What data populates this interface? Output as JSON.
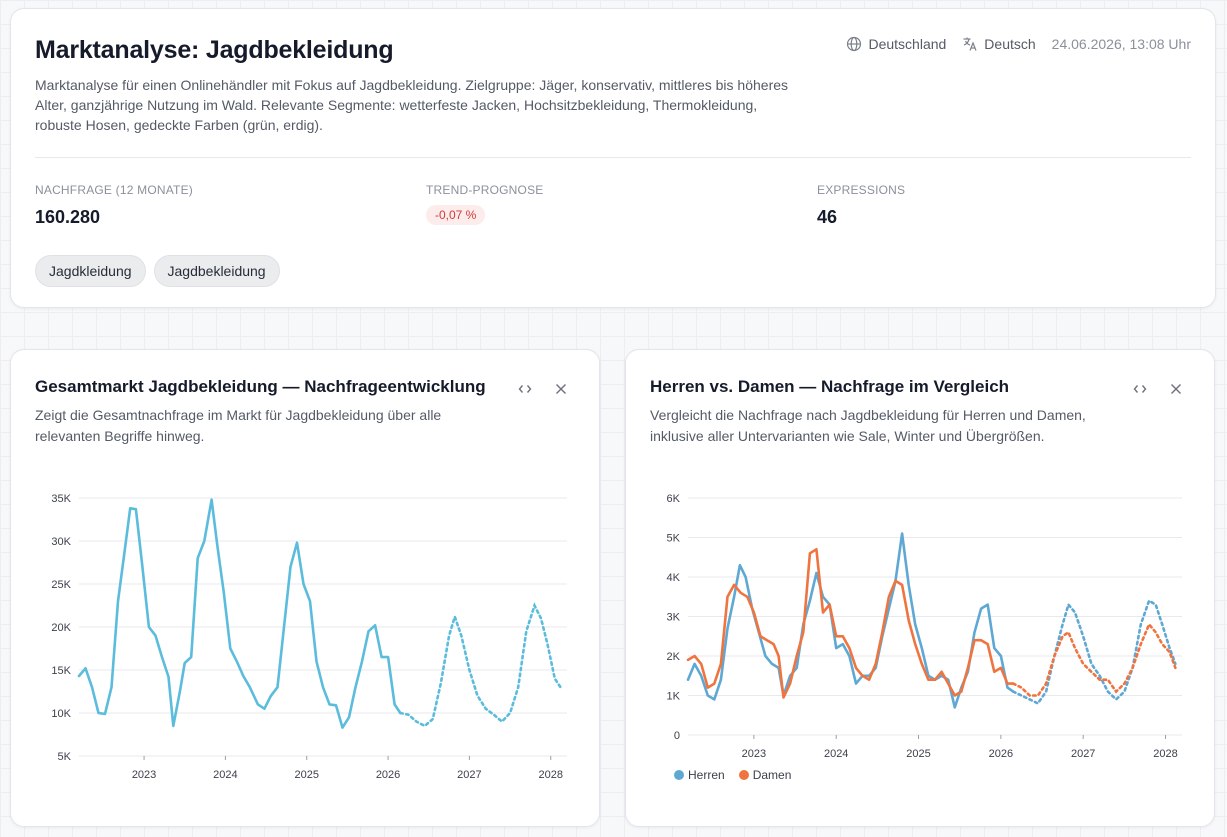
{
  "header": {
    "title": "Marktanalyse: Jagdbekleidung",
    "description": "Marktanalyse für einen Onlinehändler mit Fokus auf Jagdbekleidung. Zielgruppe: Jäger, konservativ, mittleres bis höheres Alter, ganzjährige Nutzung im Wald. Relevante Segmente: wetterfeste Jacken, Hochsitzbekleidung, Thermokleidung, robuste Hosen, gedeckte Farben (grün, erdig).",
    "country": "Deutschland",
    "language": "Deutsch",
    "date": "24.06.2026, 13:08 Uhr",
    "globe_icon": "globe-icon",
    "translate_icon": "translate-icon"
  },
  "stats": {
    "demand_label": "NACHFRAGE (12 MONATE)",
    "demand_value": "160.280",
    "trend_label": "TREND-PROGNOSE",
    "trend_value": "-0,07 %",
    "expressions_label": "EXPRESSIONS",
    "expressions_value": "46"
  },
  "tags": [
    "Jagdkleidung",
    "Jagdbekleidung"
  ],
  "colors": {
    "total": "#5bbcdc",
    "herren": "#5fa8d3",
    "damen": "#ef7440",
    "trend_negative": "#d23a3a"
  },
  "cards": [
    {
      "title": "Gesamtmarkt Jagdbekleidung — Nachfrageentwicklung",
      "description": "Zeigt die Gesamtnachfrage im Markt für Jagdbekleidung über alle relevanten Begriffe hinweg."
    },
    {
      "title": "Herren vs. Damen — Nachfrage im Vergleich",
      "description": "Vergleicht die Nachfrage nach Jagdbekleidung für Herren und Damen, inklusive aller Untervarianten wie Sale, Winter und Übergrößen."
    }
  ],
  "chart_data": [
    {
      "type": "line",
      "title": "Gesamtmarkt Jagdbekleidung — Nachfrageentwicklung",
      "ylim": [
        5000,
        35000
      ],
      "yticks": [
        5000,
        10000,
        15000,
        20000,
        25000,
        30000,
        35000
      ],
      "ytick_labels": [
        "5K",
        "10K",
        "15K",
        "20K",
        "25K",
        "30K",
        "35K"
      ],
      "xlim": [
        2022.2,
        2028.2
      ],
      "xticks": [
        2023,
        2024,
        2025,
        2026,
        2027,
        2028
      ],
      "xtick_labels": [
        "2023",
        "2024",
        "2025",
        "2026",
        "2027",
        "2028"
      ],
      "grid": true,
      "forecast_from": 2026.15,
      "series": [
        {
          "color": "#5bbcdc",
          "points": [
            [
              2022.2,
              14300
            ],
            [
              2022.28,
              15200
            ],
            [
              2022.36,
              13000
            ],
            [
              2022.44,
              10000
            ],
            [
              2022.52,
              9900
            ],
            [
              2022.6,
              13000
            ],
            [
              2022.68,
              23000
            ],
            [
              2022.75,
              28000
            ],
            [
              2022.83,
              33800
            ],
            [
              2022.9,
              33700
            ],
            [
              2022.98,
              27000
            ],
            [
              2023.06,
              20000
            ],
            [
              2023.14,
              19000
            ],
            [
              2023.22,
              16500
            ],
            [
              2023.3,
              14200
            ],
            [
              2023.36,
              8500
            ],
            [
              2023.44,
              12500
            ],
            [
              2023.5,
              15800
            ],
            [
              2023.58,
              16500
            ],
            [
              2023.66,
              28000
            ],
            [
              2023.74,
              30000
            ],
            [
              2023.83,
              34800
            ],
            [
              2023.9,
              29500
            ],
            [
              2023.98,
              24000
            ],
            [
              2024.06,
              17500
            ],
            [
              2024.14,
              16000
            ],
            [
              2024.22,
              14300
            ],
            [
              2024.3,
              13000
            ],
            [
              2024.4,
              11000
            ],
            [
              2024.48,
              10500
            ],
            [
              2024.56,
              12000
            ],
            [
              2024.64,
              13000
            ],
            [
              2024.72,
              20000
            ],
            [
              2024.8,
              27000
            ],
            [
              2024.88,
              29800
            ],
            [
              2024.96,
              25000
            ],
            [
              2025.04,
              23000
            ],
            [
              2025.12,
              16000
            ],
            [
              2025.2,
              13000
            ],
            [
              2025.28,
              11000
            ],
            [
              2025.36,
              10900
            ],
            [
              2025.44,
              8300
            ],
            [
              2025.52,
              9500
            ],
            [
              2025.6,
              13000
            ],
            [
              2025.68,
              16000
            ],
            [
              2025.76,
              19500
            ],
            [
              2025.84,
              20200
            ],
            [
              2025.92,
              16500
            ],
            [
              2026.0,
              16500
            ],
            [
              2026.08,
              11000
            ],
            [
              2026.15,
              10000
            ],
            [
              2026.25,
              9800
            ],
            [
              2026.35,
              9000
            ],
            [
              2026.45,
              8500
            ],
            [
              2026.55,
              9300
            ],
            [
              2026.65,
              13500
            ],
            [
              2026.75,
              19000
            ],
            [
              2026.82,
              21200
            ],
            [
              2026.9,
              19000
            ],
            [
              2027.0,
              15000
            ],
            [
              2027.1,
              12000
            ],
            [
              2027.2,
              10500
            ],
            [
              2027.3,
              9800
            ],
            [
              2027.4,
              9000
            ],
            [
              2027.5,
              10000
            ],
            [
              2027.6,
              13000
            ],
            [
              2027.7,
              19500
            ],
            [
              2027.8,
              22500
            ],
            [
              2027.88,
              21000
            ],
            [
              2027.96,
              18000
            ],
            [
              2028.05,
              14000
            ],
            [
              2028.12,
              13000
            ]
          ]
        }
      ]
    },
    {
      "type": "line",
      "title": "Herren vs. Damen — Nachfrage im Vergleich",
      "ylim": [
        0,
        6000
      ],
      "yticks": [
        0,
        1000,
        2000,
        3000,
        4000,
        5000,
        6000
      ],
      "ytick_labels": [
        "0",
        "1K",
        "2K",
        "3K",
        "4K",
        "5K",
        "6K"
      ],
      "xlim": [
        2022.2,
        2028.2
      ],
      "xticks": [
        2023,
        2024,
        2025,
        2026,
        2027,
        2028
      ],
      "xtick_labels": [
        "2023",
        "2024",
        "2025",
        "2026",
        "2027",
        "2028"
      ],
      "grid": true,
      "forecast_from": 2026.15,
      "legend": "bottom-left",
      "series": [
        {
          "name": "Herren",
          "color": "#5fa8d3",
          "points": [
            [
              2022.2,
              1400
            ],
            [
              2022.28,
              1800
            ],
            [
              2022.36,
              1500
            ],
            [
              2022.44,
              1000
            ],
            [
              2022.52,
              900
            ],
            [
              2022.6,
              1400
            ],
            [
              2022.68,
              2700
            ],
            [
              2022.76,
              3500
            ],
            [
              2022.83,
              4300
            ],
            [
              2022.9,
              4000
            ],
            [
              2022.98,
              3200
            ],
            [
              2023.06,
              2600
            ],
            [
              2023.14,
              2000
            ],
            [
              2023.22,
              1800
            ],
            [
              2023.3,
              1700
            ],
            [
              2023.36,
              1000
            ],
            [
              2023.44,
              1500
            ],
            [
              2023.52,
              1700
            ],
            [
              2023.6,
              2800
            ],
            [
              2023.68,
              3400
            ],
            [
              2023.76,
              4100
            ],
            [
              2023.84,
              3500
            ],
            [
              2023.92,
              3300
            ],
            [
              2024.0,
              2200
            ],
            [
              2024.08,
              2300
            ],
            [
              2024.16,
              2000
            ],
            [
              2024.24,
              1300
            ],
            [
              2024.32,
              1500
            ],
            [
              2024.4,
              1500
            ],
            [
              2024.48,
              1700
            ],
            [
              2024.56,
              2500
            ],
            [
              2024.64,
              3200
            ],
            [
              2024.72,
              3900
            ],
            [
              2024.8,
              5100
            ],
            [
              2024.88,
              3800
            ],
            [
              2024.96,
              2800
            ],
            [
              2025.04,
              2200
            ],
            [
              2025.12,
              1500
            ],
            [
              2025.2,
              1400
            ],
            [
              2025.28,
              1500
            ],
            [
              2025.36,
              1400
            ],
            [
              2025.44,
              700
            ],
            [
              2025.52,
              1200
            ],
            [
              2025.6,
              1600
            ],
            [
              2025.68,
              2600
            ],
            [
              2025.76,
              3200
            ],
            [
              2025.84,
              3300
            ],
            [
              2025.92,
              2200
            ],
            [
              2026.0,
              2000
            ],
            [
              2026.08,
              1200
            ],
            [
              2026.15,
              1100
            ],
            [
              2026.25,
              1000
            ],
            [
              2026.35,
              900
            ],
            [
              2026.45,
              800
            ],
            [
              2026.55,
              1100
            ],
            [
              2026.65,
              2000
            ],
            [
              2026.75,
              2800
            ],
            [
              2026.82,
              3300
            ],
            [
              2026.9,
              3100
            ],
            [
              2027.0,
              2500
            ],
            [
              2027.1,
              1800
            ],
            [
              2027.2,
              1500
            ],
            [
              2027.3,
              1100
            ],
            [
              2027.4,
              900
            ],
            [
              2027.5,
              1100
            ],
            [
              2027.6,
              1700
            ],
            [
              2027.7,
              2800
            ],
            [
              2027.8,
              3400
            ],
            [
              2027.88,
              3300
            ],
            [
              2027.96,
              2800
            ],
            [
              2028.05,
              2200
            ],
            [
              2028.12,
              1800
            ]
          ]
        },
        {
          "name": "Damen",
          "color": "#ef7440",
          "points": [
            [
              2022.2,
              1900
            ],
            [
              2022.28,
              2000
            ],
            [
              2022.36,
              1800
            ],
            [
              2022.44,
              1200
            ],
            [
              2022.52,
              1300
            ],
            [
              2022.6,
              1800
            ],
            [
              2022.68,
              3500
            ],
            [
              2022.76,
              3800
            ],
            [
              2022.84,
              3600
            ],
            [
              2022.92,
              3500
            ],
            [
              2023.0,
              3100
            ],
            [
              2023.08,
              2500
            ],
            [
              2023.16,
              2400
            ],
            [
              2023.24,
              2300
            ],
            [
              2023.3,
              2000
            ],
            [
              2023.36,
              950
            ],
            [
              2023.44,
              1300
            ],
            [
              2023.52,
              2000
            ],
            [
              2023.6,
              2600
            ],
            [
              2023.68,
              4600
            ],
            [
              2023.76,
              4700
            ],
            [
              2023.84,
              3100
            ],
            [
              2023.92,
              3300
            ],
            [
              2024.0,
              2500
            ],
            [
              2024.08,
              2500
            ],
            [
              2024.16,
              2200
            ],
            [
              2024.24,
              1700
            ],
            [
              2024.32,
              1500
            ],
            [
              2024.4,
              1400
            ],
            [
              2024.48,
              1800
            ],
            [
              2024.56,
              2600
            ],
            [
              2024.64,
              3500
            ],
            [
              2024.72,
              3900
            ],
            [
              2024.8,
              3800
            ],
            [
              2024.88,
              2900
            ],
            [
              2024.96,
              2300
            ],
            [
              2025.04,
              1800
            ],
            [
              2025.12,
              1400
            ],
            [
              2025.2,
              1400
            ],
            [
              2025.28,
              1600
            ],
            [
              2025.36,
              1300
            ],
            [
              2025.44,
              1000
            ],
            [
              2025.52,
              1100
            ],
            [
              2025.6,
              1700
            ],
            [
              2025.68,
              2400
            ],
            [
              2025.76,
              2400
            ],
            [
              2025.84,
              2300
            ],
            [
              2025.92,
              1600
            ],
            [
              2026.0,
              1700
            ],
            [
              2026.08,
              1300
            ],
            [
              2026.15,
              1300
            ],
            [
              2026.25,
              1200
            ],
            [
              2026.35,
              1000
            ],
            [
              2026.45,
              1000
            ],
            [
              2026.55,
              1300
            ],
            [
              2026.65,
              2000
            ],
            [
              2026.75,
              2500
            ],
            [
              2026.82,
              2600
            ],
            [
              2026.9,
              2200
            ],
            [
              2027.0,
              1800
            ],
            [
              2027.1,
              1600
            ],
            [
              2027.2,
              1400
            ],
            [
              2027.3,
              1400
            ],
            [
              2027.4,
              1100
            ],
            [
              2027.5,
              1300
            ],
            [
              2027.6,
              1700
            ],
            [
              2027.7,
              2300
            ],
            [
              2027.8,
              2800
            ],
            [
              2027.88,
              2600
            ],
            [
              2027.96,
              2300
            ],
            [
              2028.05,
              2100
            ],
            [
              2028.12,
              1700
            ]
          ]
        }
      ]
    }
  ]
}
